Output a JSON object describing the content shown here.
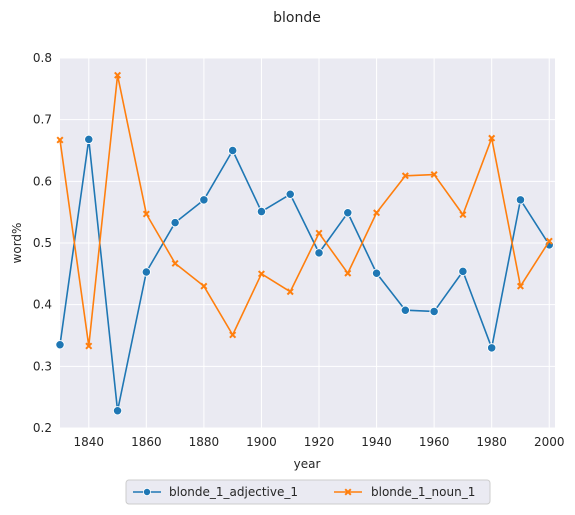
{
  "chart_data": {
    "type": "line",
    "title": "blonde",
    "xlabel": "year",
    "ylabel": "word%",
    "xlim": [
      1830,
      2002
    ],
    "ylim": [
      0.2,
      0.8
    ],
    "x_ticks": [
      1840,
      1860,
      1880,
      1900,
      1920,
      1940,
      1960,
      1980,
      2000
    ],
    "y_ticks": [
      0.2,
      0.3,
      0.4,
      0.5,
      0.6,
      0.7,
      0.8
    ],
    "x_tick_labels": [
      "1840",
      "1860",
      "1880",
      "1900",
      "1920",
      "1940",
      "1960",
      "1980",
      "2000"
    ],
    "y_tick_labels": [
      "0.2",
      "0.3",
      "0.4",
      "0.5",
      "0.6",
      "0.7",
      "0.8"
    ],
    "grid": true,
    "legend_position": "bottom-center",
    "x": [
      1830,
      1840,
      1850,
      1860,
      1870,
      1880,
      1890,
      1900,
      1910,
      1920,
      1930,
      1940,
      1950,
      1960,
      1970,
      1980,
      1990,
      2000
    ],
    "series": [
      {
        "name": "blonde_1_adjective_1",
        "color": "#1f77b4",
        "marker": "circle",
        "values": [
          0.335,
          0.668,
          0.228,
          0.453,
          0.533,
          0.57,
          0.65,
          0.551,
          0.579,
          0.484,
          0.549,
          0.451,
          0.391,
          0.389,
          0.454,
          0.33,
          0.57,
          0.497
        ]
      },
      {
        "name": "blonde_1_noun_1",
        "color": "#ff7f0e",
        "marker": "x",
        "values": [
          0.667,
          0.333,
          0.772,
          0.547,
          0.467,
          0.43,
          0.351,
          0.45,
          0.421,
          0.516,
          0.451,
          0.549,
          0.609,
          0.611,
          0.546,
          0.67,
          0.43,
          0.503
        ]
      }
    ]
  }
}
